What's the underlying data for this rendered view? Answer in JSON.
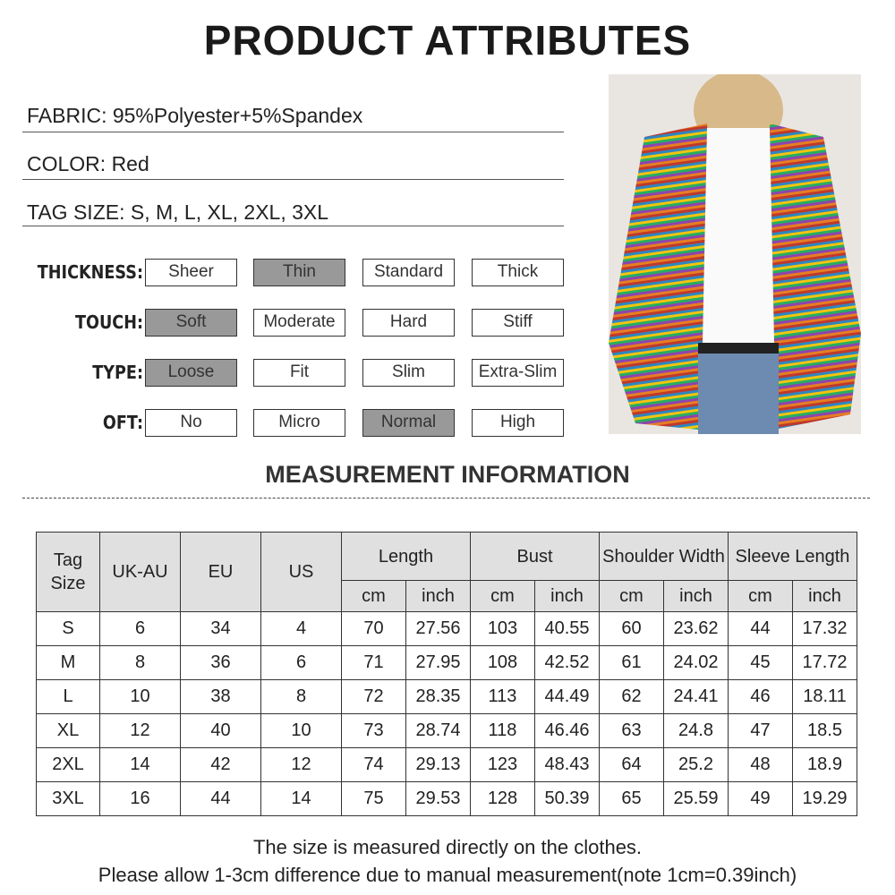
{
  "title": "PRODUCT ATTRIBUTES",
  "specs": {
    "fabric": "FABRIC: 95%Polyester+5%Spandex",
    "color": "COLOR: Red",
    "tag_size": "TAG SIZE: S, M, L, XL, 2XL, 3XL"
  },
  "attributes": [
    {
      "label": "THICKNESS:",
      "options": [
        "Sheer",
        "Thin",
        "Standard",
        "Thick"
      ],
      "selected": "Thin"
    },
    {
      "label": "TOUCH:",
      "options": [
        "Soft",
        "Moderate",
        "Hard",
        "Stiff"
      ],
      "selected": "Soft"
    },
    {
      "label": "TYPE:",
      "options": [
        "Loose",
        "Fit",
        "Slim",
        "Extra-Slim"
      ],
      "selected": "Loose"
    },
    {
      "label": "OFT:",
      "options": [
        "No",
        "Micro",
        "Normal",
        "High"
      ],
      "selected": "Normal"
    }
  ],
  "selected_color": "#999999",
  "measurement": {
    "title": "MEASUREMENT INFORMATION",
    "headers": {
      "tag_size": "Tag Size",
      "uk_au": "UK-AU",
      "eu": "EU",
      "us": "US",
      "length": "Length",
      "bust": "Bust",
      "shoulder": "Shoulder Width",
      "sleeve": "Sleeve Length",
      "cm": "cm",
      "inch": "inch"
    },
    "rows": [
      [
        "S",
        "6",
        "34",
        "4",
        "70",
        "27.56",
        "103",
        "40.55",
        "60",
        "23.62",
        "44",
        "17.32"
      ],
      [
        "M",
        "8",
        "36",
        "6",
        "71",
        "27.95",
        "108",
        "42.52",
        "61",
        "24.02",
        "45",
        "17.72"
      ],
      [
        "L",
        "10",
        "38",
        "8",
        "72",
        "28.35",
        "113",
        "44.49",
        "62",
        "24.41",
        "46",
        "18.11"
      ],
      [
        "XL",
        "12",
        "40",
        "10",
        "73",
        "28.74",
        "118",
        "46.46",
        "63",
        "24.8",
        "47",
        "18.5"
      ],
      [
        "2XL",
        "14",
        "42",
        "12",
        "74",
        "29.13",
        "123",
        "48.43",
        "64",
        "25.2",
        "48",
        "18.9"
      ],
      [
        "3XL",
        "16",
        "44",
        "14",
        "75",
        "29.53",
        "128",
        "50.39",
        "65",
        "25.59",
        "49",
        "19.29"
      ]
    ]
  },
  "footer": {
    "line1": "The size is measured directly on the clothes.",
    "line2": "Please allow 1-3cm difference due to manual measurement(note 1cm=0.39inch)"
  }
}
